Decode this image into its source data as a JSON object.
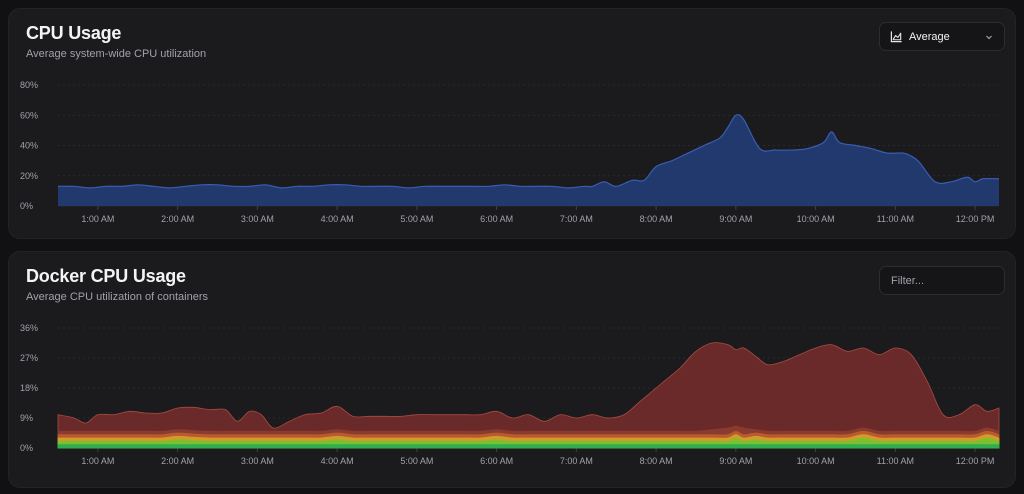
{
  "cpu_card": {
    "title": "CPU Usage",
    "subtitle": "Average system-wide CPU utilization",
    "aggregation_select": {
      "value": "Average",
      "icon": "area-chart-icon"
    }
  },
  "docker_card": {
    "title": "Docker CPU Usage",
    "subtitle": "Average CPU utilization of containers",
    "filter": {
      "placeholder": "Filter...",
      "value": ""
    }
  },
  "colors": {
    "cpu_fill": "#22396e",
    "cpu_line": "#3a5db3",
    "docker_series": [
      "#6b2a2a",
      "#8a3b2e",
      "#b85b2f",
      "#d49a2a",
      "#7fbf2f",
      "#2fae4f"
    ]
  },
  "chart_data": [
    {
      "type": "area",
      "title": "CPU Usage",
      "x_tick_labels": [
        "1:00 AM",
        "2:00 AM",
        "3:00 AM",
        "4:00 AM",
        "5:00 AM",
        "6:00 AM",
        "7:00 AM",
        "8:00 AM",
        "9:00 AM",
        "10:00 AM",
        "11:00 AM",
        "12:00 PM"
      ],
      "y_tick_labels": [
        "0%",
        "20%",
        "40%",
        "60%",
        "80%"
      ],
      "ylim": [
        0,
        80
      ],
      "x_range_hours": [
        0.5,
        12.3
      ],
      "grid": true,
      "series": [
        {
          "x": [
            0.5,
            0.7,
            0.9,
            1.1,
            1.3,
            1.5,
            1.7,
            1.9,
            2.1,
            2.3,
            2.5,
            2.7,
            2.9,
            3.1,
            3.3,
            3.5,
            3.7,
            3.9,
            4.1,
            4.3,
            4.5,
            4.7,
            4.9,
            5.1,
            5.3,
            5.5,
            5.7,
            5.9,
            6.1,
            6.3,
            6.5,
            6.7,
            6.9,
            7.1,
            7.2,
            7.35,
            7.5,
            7.7,
            7.85,
            8.0,
            8.2,
            8.4,
            8.6,
            8.8,
            8.9,
            9.0,
            9.1,
            9.3,
            9.5,
            9.7,
            9.9,
            10.1,
            10.2,
            10.3,
            10.5,
            10.7,
            10.9,
            11.1,
            11.2,
            11.3,
            11.5,
            11.7,
            11.9,
            12.0,
            12.1,
            12.3
          ],
          "values": [
            13,
            13,
            12,
            13,
            13,
            14,
            13,
            12,
            13,
            14,
            14,
            13,
            13,
            14,
            12,
            13,
            13,
            14,
            14,
            13,
            13,
            13,
            12,
            13,
            13,
            13,
            13,
            13,
            14,
            13,
            13,
            13,
            12,
            13,
            13,
            16,
            13,
            17,
            17,
            26,
            30,
            35,
            40,
            45,
            52,
            60,
            57,
            38,
            37,
            37,
            38,
            42,
            49,
            42,
            40,
            38,
            35,
            35,
            33,
            29,
            16,
            16,
            19,
            16,
            18,
            18
          ]
        }
      ]
    },
    {
      "type": "area",
      "title": "Docker CPU Usage",
      "stacked": true,
      "x_tick_labels": [
        "1:00 AM",
        "2:00 AM",
        "3:00 AM",
        "4:00 AM",
        "5:00 AM",
        "6:00 AM",
        "7:00 AM",
        "8:00 AM",
        "9:00 AM",
        "10:00 AM",
        "11:00 AM",
        "12:00 PM"
      ],
      "y_tick_labels": [
        "0%",
        "9%",
        "18%",
        "27%",
        "36%"
      ],
      "ylim": [
        0,
        36
      ],
      "x_range_hours": [
        0.5,
        12.3
      ],
      "grid": true,
      "x": [
        0.5,
        0.7,
        0.85,
        1.0,
        1.2,
        1.4,
        1.6,
        1.8,
        2.0,
        2.2,
        2.4,
        2.6,
        2.75,
        2.9,
        3.05,
        3.2,
        3.4,
        3.6,
        3.8,
        4.0,
        4.2,
        4.4,
        4.6,
        4.8,
        5.0,
        5.2,
        5.4,
        5.6,
        5.8,
        6.0,
        6.2,
        6.4,
        6.6,
        6.8,
        7.0,
        7.2,
        7.4,
        7.6,
        7.8,
        8.0,
        8.15,
        8.3,
        8.5,
        8.7,
        8.9,
        9.0,
        9.1,
        9.25,
        9.4,
        9.6,
        9.8,
        10.0,
        10.2,
        10.4,
        10.6,
        10.8,
        11.0,
        11.2,
        11.4,
        11.6,
        11.8,
        12.0,
        12.15,
        12.3
      ],
      "series": [
        {
          "values": [
            1,
            1,
            1,
            1,
            1,
            1,
            1,
            1,
            1,
            1,
            1,
            1,
            1,
            1,
            1,
            1,
            1,
            1,
            1,
            1,
            1,
            1,
            1,
            1,
            1,
            1,
            1,
            1,
            1,
            1,
            1,
            1,
            1,
            1,
            1,
            1,
            1,
            1,
            1,
            1,
            1,
            1,
            1,
            1,
            1,
            1,
            1,
            1,
            1,
            1,
            1,
            1,
            1,
            1,
            1,
            1,
            1,
            1,
            1,
            1,
            1,
            1,
            1,
            1
          ]
        },
        {
          "values": [
            1,
            1,
            1,
            1,
            1,
            1,
            1,
            1,
            1.5,
            1.2,
            1,
            1,
            1,
            1,
            1,
            1,
            1,
            1,
            1,
            1.5,
            1,
            1,
            1,
            1,
            1,
            1,
            1,
            1,
            1,
            1.5,
            1,
            1,
            1,
            1,
            1,
            1,
            1,
            1,
            1,
            1,
            1,
            1,
            1,
            1,
            1,
            2,
            1,
            1.5,
            1,
            1,
            1,
            1,
            1,
            1,
            2,
            1,
            1,
            1,
            1,
            1,
            1,
            1,
            2,
            1
          ]
        },
        {
          "values": [
            1,
            1,
            1,
            1,
            1,
            1,
            1,
            1,
            1,
            1,
            1,
            1,
            1,
            1,
            1,
            1,
            1,
            1,
            1,
            1,
            1,
            1,
            1,
            1,
            1,
            1,
            1,
            1,
            1,
            1,
            1,
            1,
            1,
            1,
            1,
            1,
            1,
            1,
            1,
            1,
            1,
            1,
            1,
            1,
            1,
            1,
            1,
            1,
            1,
            1,
            1,
            1,
            1,
            1,
            1,
            1,
            1,
            1,
            1,
            1,
            1,
            1,
            1,
            1
          ]
        },
        {
          "values": [
            1,
            1,
            1,
            1,
            1,
            1,
            1,
            1,
            1,
            1,
            1,
            1,
            1,
            1,
            1,
            1,
            1,
            1,
            1,
            1,
            1,
            1,
            1,
            1,
            1,
            1,
            1,
            1,
            1,
            1,
            1,
            1,
            1,
            1,
            1,
            1,
            1,
            1,
            1,
            1,
            1,
            1,
            1,
            1,
            1,
            1,
            1,
            1,
            1,
            1,
            1,
            1,
            1,
            1,
            1,
            1,
            1,
            1,
            1,
            1,
            1,
            1,
            1,
            1
          ]
        },
        {
          "values": [
            1,
            1,
            1,
            1,
            1,
            1,
            1,
            1,
            1,
            1,
            1,
            1,
            1,
            1,
            1,
            1,
            1,
            1,
            1,
            1,
            1,
            1,
            1,
            1,
            1,
            1,
            1,
            1,
            1,
            1,
            1,
            1,
            1,
            1,
            1,
            1,
            1,
            1,
            1,
            1,
            1,
            1,
            1,
            1.5,
            2,
            1.5,
            2,
            1,
            1,
            1,
            1,
            1,
            1,
            1,
            1,
            1,
            1,
            1,
            1,
            1,
            1,
            1,
            1,
            1
          ]
        },
        {
          "values": [
            5,
            4,
            2.5,
            5,
            5,
            6,
            5.5,
            5.5,
            6.5,
            7,
            6.5,
            6.5,
            3,
            6,
            5,
            1,
            3,
            5,
            5.5,
            7,
            4.5,
            4.5,
            4.5,
            4.5,
            5,
            5,
            5,
            5,
            5,
            5.5,
            4,
            5,
            3,
            5,
            4,
            5,
            4,
            5,
            9,
            13,
            16,
            19,
            24,
            26,
            25,
            23,
            24,
            22,
            20,
            21,
            23,
            25,
            26,
            24,
            24,
            23,
            25,
            23,
            15,
            5,
            5,
            8,
            5,
            7
          ]
        }
      ]
    }
  ]
}
